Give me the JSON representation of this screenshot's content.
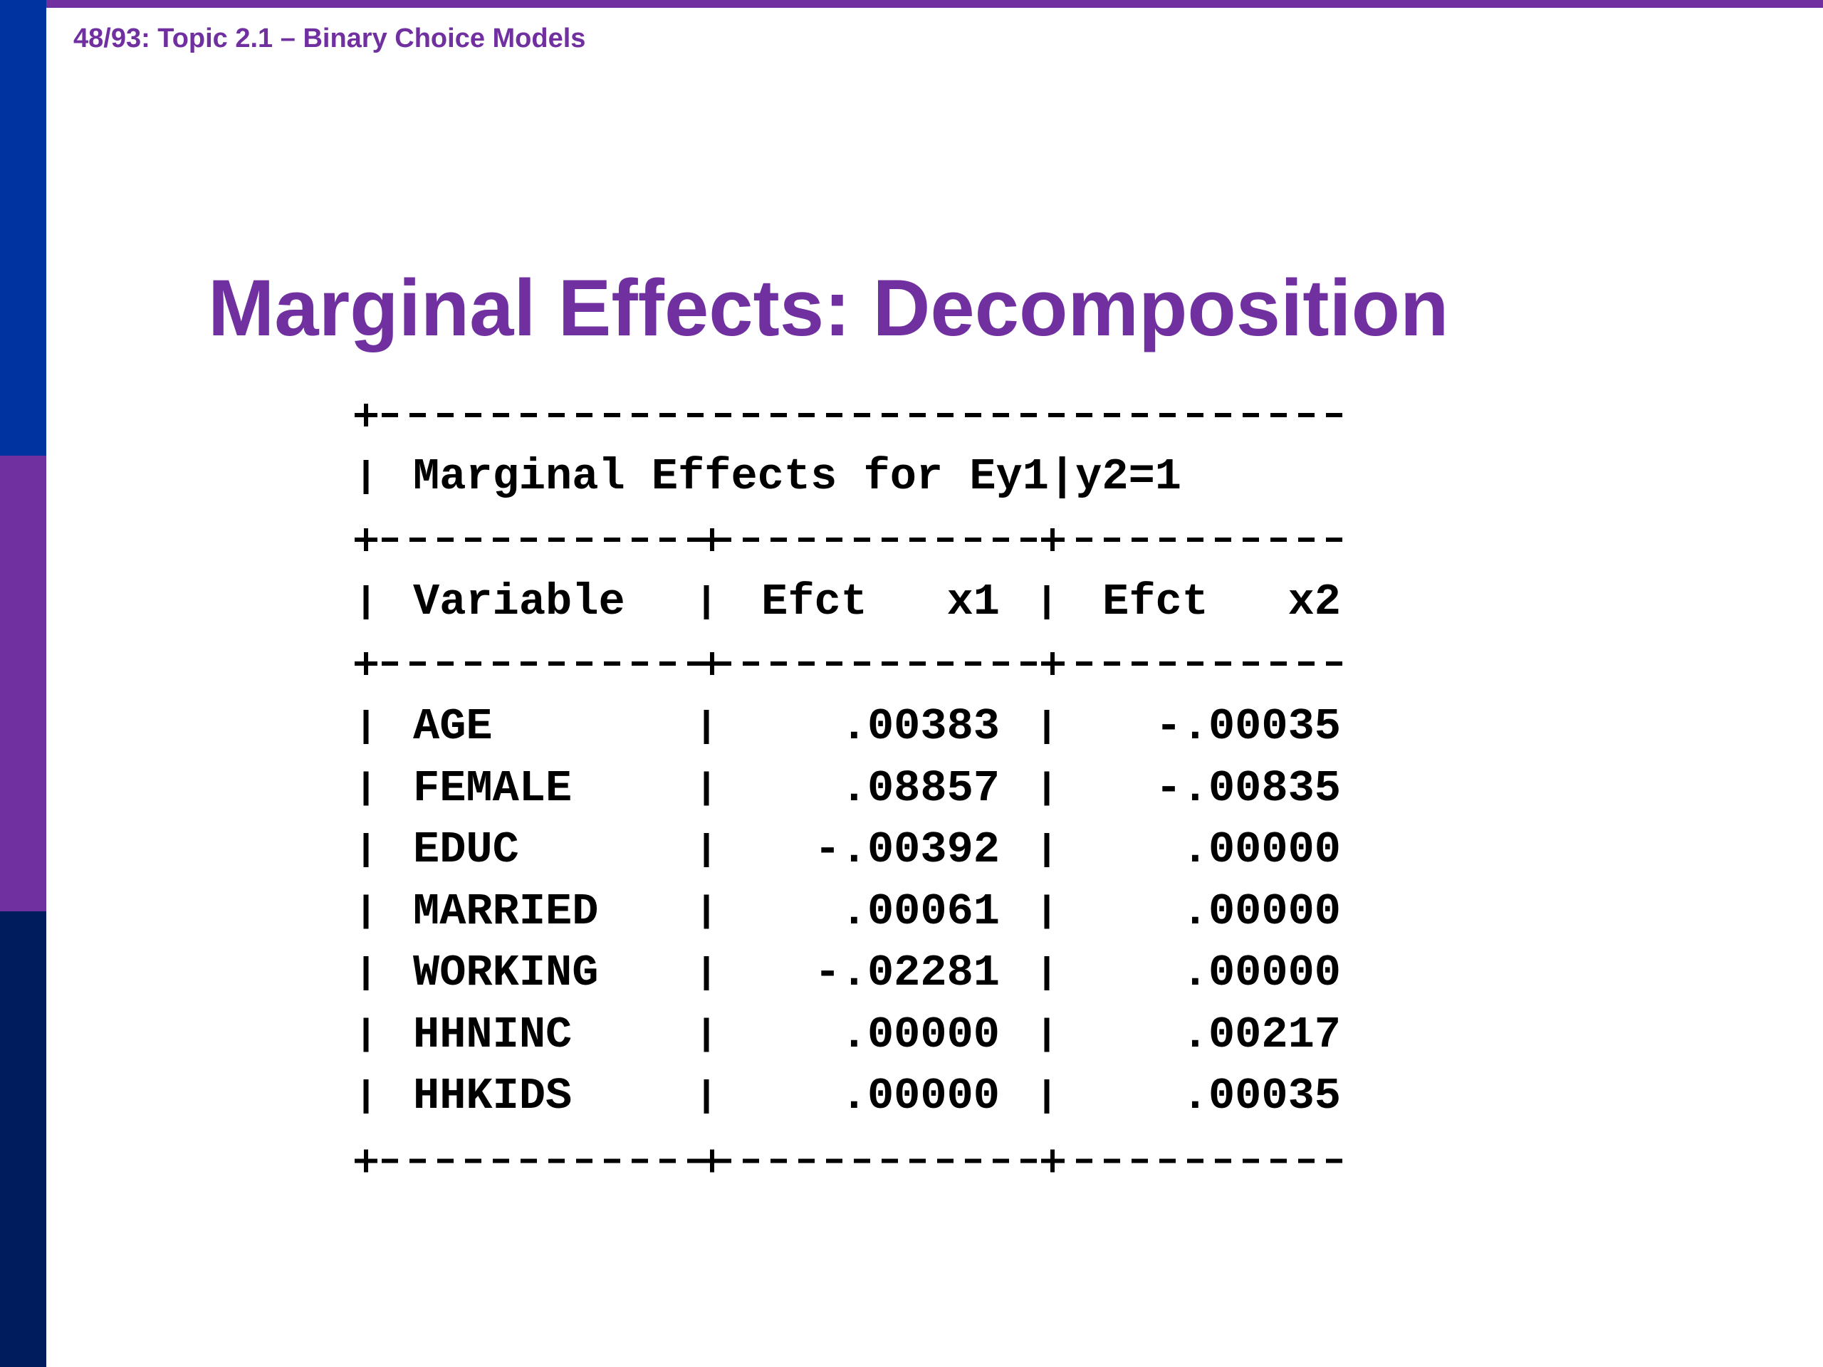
{
  "header": {
    "slide": "48/93: Topic 2.1 – Binary Choice Models"
  },
  "title": "Marginal Effects: Decomposition",
  "table": {
    "caption": "Marginal Effects for Ey1|y2=1",
    "columns": [
      "Variable",
      "Efct   x1",
      "Efct   x2"
    ],
    "rows": [
      [
        "AGE",
        ".00383",
        "-.00035"
      ],
      [
        "FEMALE",
        ".08857",
        "-.00835"
      ],
      [
        "EDUC",
        "-.00392",
        ".00000"
      ],
      [
        "MARRIED",
        ".00061",
        ".00000"
      ],
      [
        "WORKING",
        "-.02281",
        ".00000"
      ],
      [
        "HHNINC",
        ".00000",
        ".00217"
      ],
      [
        "HHKIDS",
        ".00000",
        ".00035"
      ]
    ]
  }
}
